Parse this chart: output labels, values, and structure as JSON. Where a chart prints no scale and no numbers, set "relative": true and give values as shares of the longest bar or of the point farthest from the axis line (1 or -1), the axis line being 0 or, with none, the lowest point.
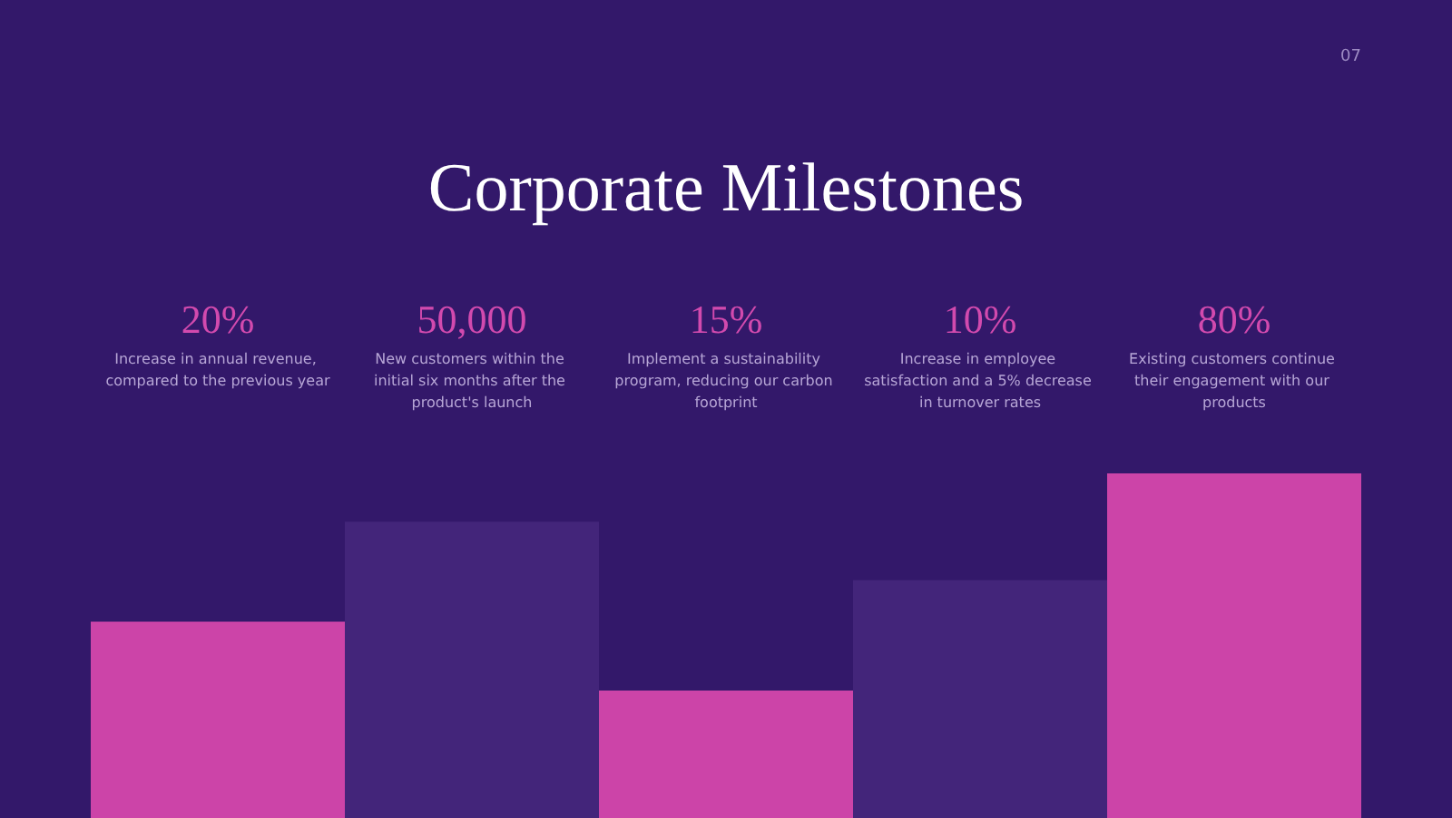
{
  "chart_data": {
    "type": "bar",
    "title": "Corporate Milestones",
    "relative": true,
    "categories": [
      null,
      null,
      null,
      null,
      null
    ],
    "values": [
      0.57,
      0.86,
      0.37,
      0.69,
      1
    ],
    "colors": [
      "#cc44a8",
      "#43257a",
      "#cc44a8",
      "#43257a",
      "#cc44a8"
    ],
    "annotations": [
      "20%",
      "50,000",
      "15%",
      "10%",
      "80%",
      "Increase in annual revenue, compared to the previous year",
      "New customers within the initial six months after the product's launch",
      "Implement a sustainability program, reducing our carbon footprint",
      "Increase in employee satisfaction and a 5% decrease in turnover rates",
      "Existing customers continue their engagement with our products",
      "07"
    ]
  }
}
